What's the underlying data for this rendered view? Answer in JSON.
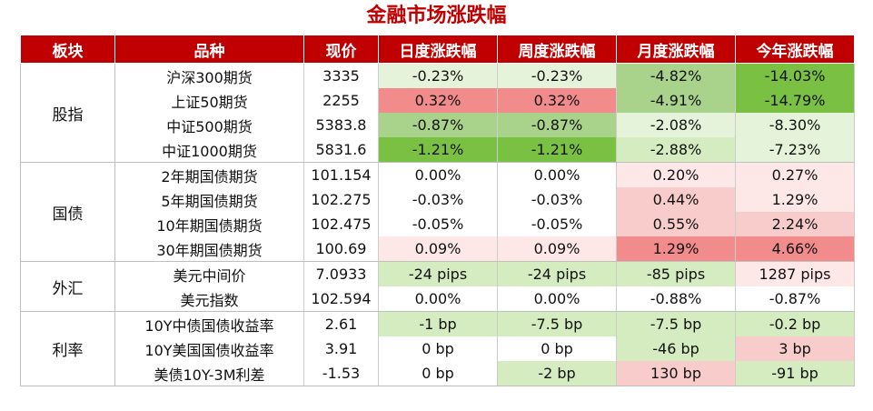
{
  "title": "金融市场涨跌幅",
  "headers": [
    "板块",
    "品种",
    "现价",
    "日度涨跌幅",
    "周度涨跌幅",
    "月度涨跌幅",
    "今年涨跌幅"
  ],
  "colors": {
    "header_bg": "#c00000",
    "green_dark": "#7ac143",
    "green_mid": "#a9d38a",
    "green_light": "#d4ecc0",
    "green_faint": "#e4f3d9",
    "red_dark": "#f28b8b",
    "red_mid": "#f5aaaa",
    "red_light": "#f9cccc",
    "red_faint": "#fde7e7"
  },
  "sections": [
    {
      "name": "股指",
      "rows": [
        {
          "item": "沪深300期货",
          "price": "3335",
          "day": "-0.23%",
          "week": "-0.23%",
          "month": "-4.82%",
          "ytd": "-14.03%"
        },
        {
          "item": "上证50期货",
          "price": "2255",
          "day": "0.32%",
          "week": "0.32%",
          "month": "-4.91%",
          "ytd": "-14.79%"
        },
        {
          "item": "中证500期货",
          "price": "5383.8",
          "day": "-0.87%",
          "week": "-0.87%",
          "month": "-2.08%",
          "ytd": "-8.30%"
        },
        {
          "item": "中证1000期货",
          "price": "5831.6",
          "day": "-1.21%",
          "week": "-1.21%",
          "month": "-2.88%",
          "ytd": "-7.23%"
        }
      ]
    },
    {
      "name": "国债",
      "rows": [
        {
          "item": "2年期国债期货",
          "price": "101.154",
          "day": "0.00%",
          "week": "0.00%",
          "month": "0.20%",
          "ytd": "0.27%"
        },
        {
          "item": "5年期国债期货",
          "price": "102.275",
          "day": "-0.03%",
          "week": "-0.03%",
          "month": "0.44%",
          "ytd": "1.29%"
        },
        {
          "item": "10年期国债期货",
          "price": "102.475",
          "day": "-0.05%",
          "week": "-0.05%",
          "month": "0.55%",
          "ytd": "2.24%"
        },
        {
          "item": "30年期国债期货",
          "price": "100.69",
          "day": "0.09%",
          "week": "0.09%",
          "month": "1.29%",
          "ytd": "4.66%"
        }
      ]
    },
    {
      "name": "外汇",
      "rows": [
        {
          "item": "美元中间价",
          "price": "7.0933",
          "day": "-24 pips",
          "week": "-24 pips",
          "month": "-85 pips",
          "ytd": "1287 pips"
        },
        {
          "item": "美元指数",
          "price": "102.594",
          "day": "0.00%",
          "week": "0.00%",
          "month": "-0.88%",
          "ytd": "-0.87%"
        }
      ]
    },
    {
      "name": "利率",
      "rows": [
        {
          "item": "10Y中债国债收益率",
          "price": "2.61",
          "day": "-1 bp",
          "week": "-7.5 bp",
          "month": "-7.5 bp",
          "ytd": "-0.2 bp"
        },
        {
          "item": "10Y美国国债收益率",
          "price": "3.91",
          "day": "0 bp",
          "week": "0 bp",
          "month": "-46 bp",
          "ytd": "3 bp"
        },
        {
          "item": "美债10Y-3M利差",
          "price": "-1.53",
          "day": "0 bp",
          "week": "-2 bp",
          "month": "130 bp",
          "ytd": "-91 bp"
        }
      ]
    }
  ]
}
